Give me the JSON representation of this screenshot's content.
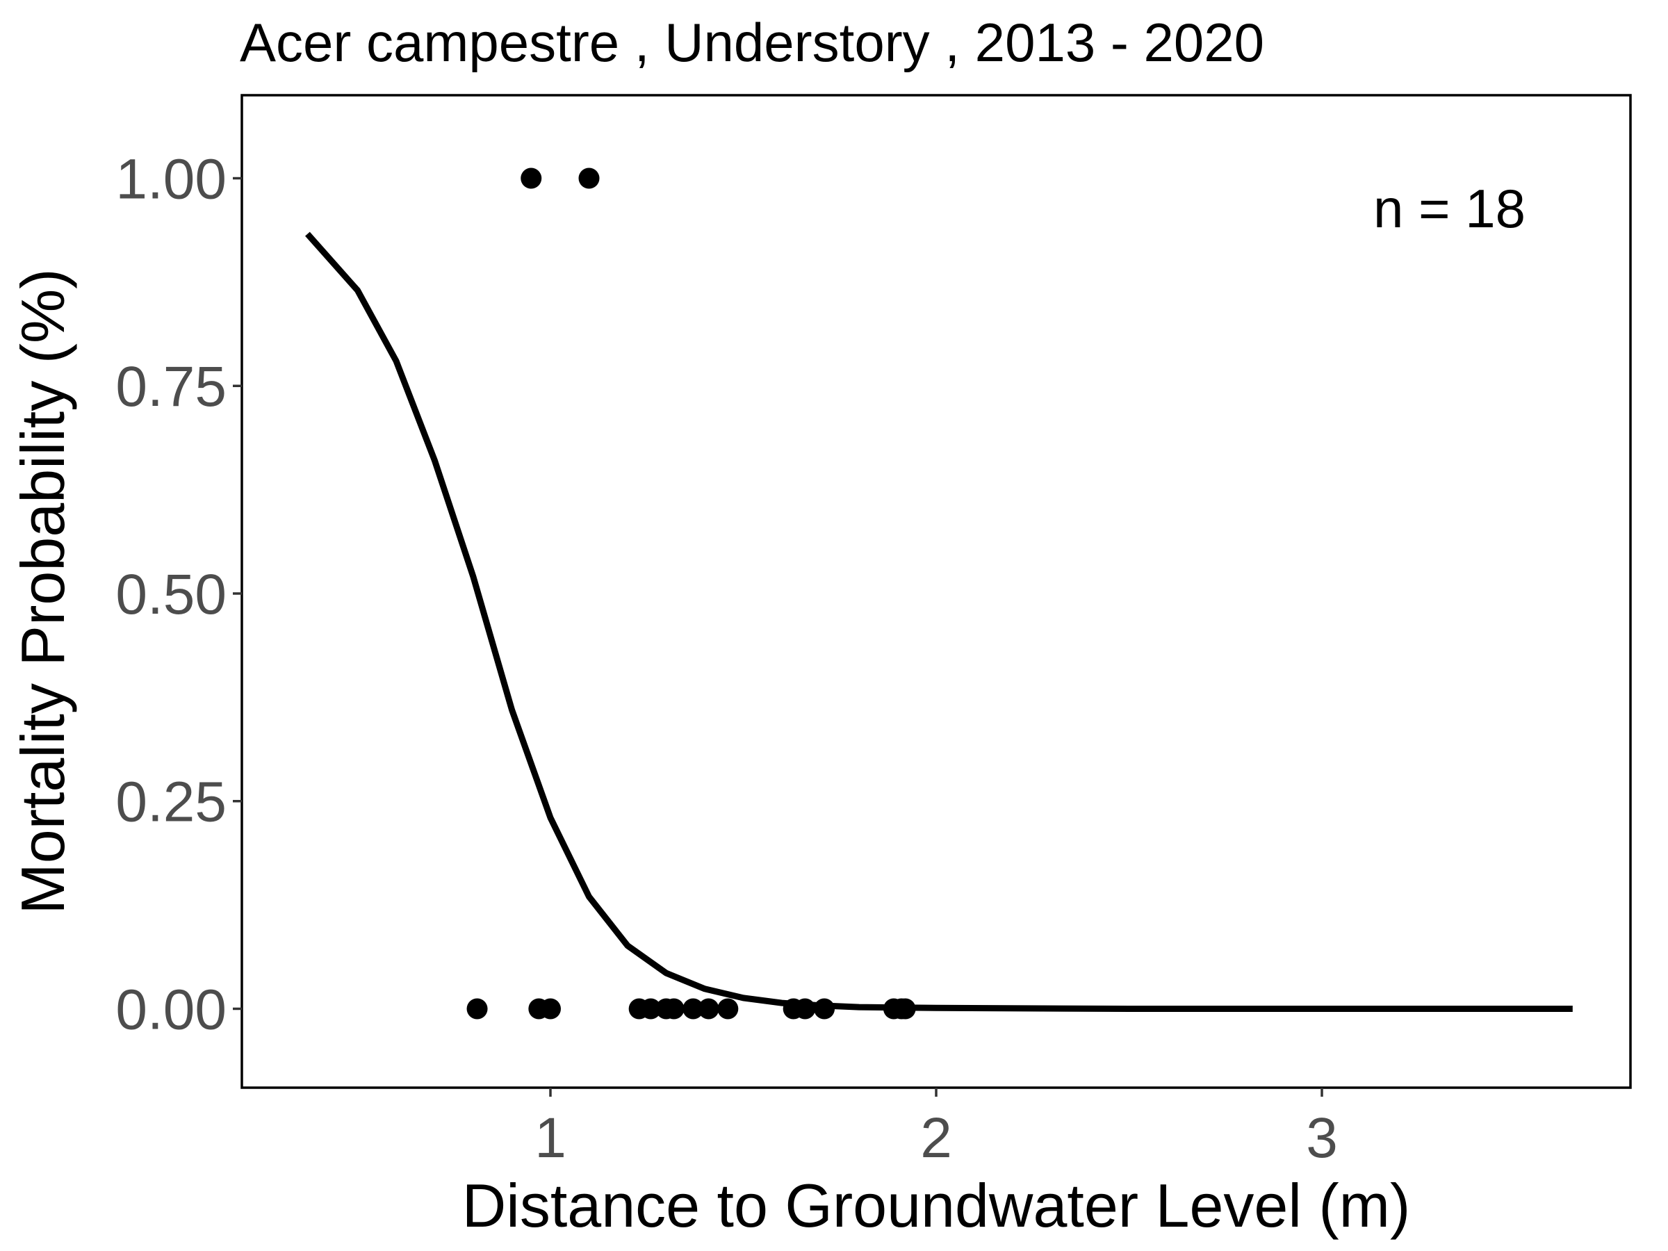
{
  "chart_data": {
    "type": "scatter",
    "title": "Acer campestre , Understory , 2013 - 2020",
    "xlabel": "Distance to Groundwater Level (m)",
    "ylabel": "Mortality Probability (%)",
    "annotation": "n =  18",
    "xlim": [
      0.2,
      3.8
    ],
    "ylim": [
      -0.095,
      1.1
    ],
    "x_ticks": [
      1,
      2,
      3
    ],
    "x_tick_labels": [
      "1",
      "2",
      "3"
    ],
    "y_ticks": [
      0.0,
      0.25,
      0.5,
      0.75,
      1.0
    ],
    "y_tick_labels": [
      "0.00",
      "0.25",
      "0.50",
      "0.75",
      "1.00"
    ],
    "grid": false,
    "legend": "none",
    "colors": {
      "points": "#000000",
      "curve": "#000000",
      "tick_labels": "#4d4d4d",
      "background": "#ffffff"
    },
    "series": [
      {
        "kind": "points",
        "points": [
          {
            "x": 0.95,
            "y": 1
          },
          {
            "x": 1.1,
            "y": 1
          },
          {
            "x": 0.81,
            "y": 0
          },
          {
            "x": 0.97,
            "y": 0
          },
          {
            "x": 1.0,
            "y": 0
          },
          {
            "x": 1.23,
            "y": 0
          },
          {
            "x": 1.26,
            "y": 0
          },
          {
            "x": 1.3,
            "y": 0
          },
          {
            "x": 1.32,
            "y": 0
          },
          {
            "x": 1.37,
            "y": 0
          },
          {
            "x": 1.41,
            "y": 0
          },
          {
            "x": 1.46,
            "y": 0
          },
          {
            "x": 1.63,
            "y": 0
          },
          {
            "x": 1.66,
            "y": 0
          },
          {
            "x": 1.71,
            "y": 0
          },
          {
            "x": 1.89,
            "y": 0
          },
          {
            "x": 1.91,
            "y": 0
          },
          {
            "x": 1.92,
            "y": 0
          }
        ]
      },
      {
        "kind": "line",
        "points": [
          {
            "x": 0.37,
            "y": 0.933
          },
          {
            "x": 0.5,
            "y": 0.865
          },
          {
            "x": 0.6,
            "y": 0.78
          },
          {
            "x": 0.7,
            "y": 0.66
          },
          {
            "x": 0.8,
            "y": 0.52
          },
          {
            "x": 0.9,
            "y": 0.36
          },
          {
            "x": 1.0,
            "y": 0.23
          },
          {
            "x": 1.1,
            "y": 0.135
          },
          {
            "x": 1.2,
            "y": 0.076
          },
          {
            "x": 1.3,
            "y": 0.043
          },
          {
            "x": 1.4,
            "y": 0.024
          },
          {
            "x": 1.5,
            "y": 0.013
          },
          {
            "x": 1.6,
            "y": 0.007
          },
          {
            "x": 1.7,
            "y": 0.004
          },
          {
            "x": 1.8,
            "y": 0.002
          },
          {
            "x": 2.0,
            "y": 0.001
          },
          {
            "x": 2.5,
            "y": 0.0
          },
          {
            "x": 3.0,
            "y": 0.0
          },
          {
            "x": 3.5,
            "y": 0.0
          },
          {
            "x": 3.65,
            "y": 0.0
          }
        ]
      }
    ]
  }
}
